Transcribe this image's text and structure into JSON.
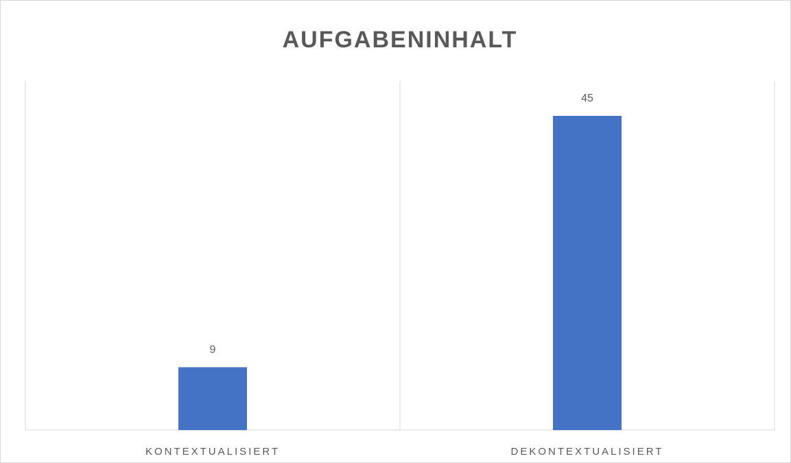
{
  "chart_data": {
    "type": "bar",
    "title": "AUFGABENINHALT",
    "categories": [
      "KONTEXTUALISIERT",
      "DEKONTEXTUALISIERT"
    ],
    "values": [
      9,
      45
    ],
    "color": "#4472c4",
    "ylim": [
      0,
      50
    ]
  }
}
